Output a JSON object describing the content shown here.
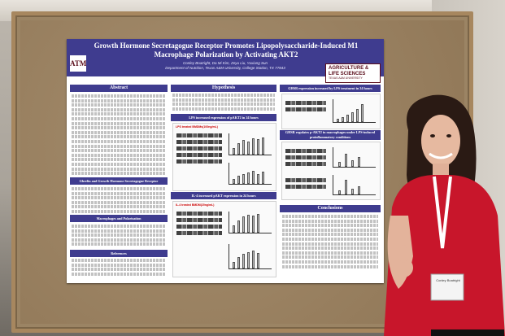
{
  "poster": {
    "title": "Growth Hormone Secretagogue Receptor Promotes Lipopolysaccharide-Induced M1 Macrophage Polarization by Activating AKT2",
    "authors": "Conley Boatright, Da Mi Kim, Zeyu Liu, Yuxiang Sun",
    "affiliation": "Department of Nutrition, Texas A&M University, College Station, TX 77843",
    "logo_left": "ATM",
    "logo_right_line1": "AGRICULTURE & LIFE SCIENCES",
    "logo_right_line2": "TEXAS A&M UNIVERSITY",
    "sections": {
      "abstract": "Abstract",
      "ghrelin": "Ghrelin and Growth Hormone Secretagogue Receptor",
      "macrophages": "Macrophages and Polarization",
      "references": "References",
      "hypothesis": "Hypothesis",
      "lps_pakt2": "LPS increased expression of pAKT2 in 24 hours",
      "il4_pakt": "IL-4 increased pAKT expression in 24 hours",
      "ghsr_lps": "GHSR expression increased by LPS treatment in 24 hours",
      "ghsr_pakt": "GHSR regulates p-AKT2 in macrophages under LPS-induced proinflammatory conditions",
      "conclusions": "Conclusions"
    },
    "fig_labels": {
      "lps_label": "LPS treated BMDMs(100ng/mL)",
      "il4_label": "IL-4 treated BMDM(20ng/mL)"
    }
  },
  "badge": {
    "name": "Conley Boatright"
  },
  "colors": {
    "poster_header": "#3f3c8f",
    "board_frame": "#a7875f",
    "dress": "#c8162b"
  }
}
